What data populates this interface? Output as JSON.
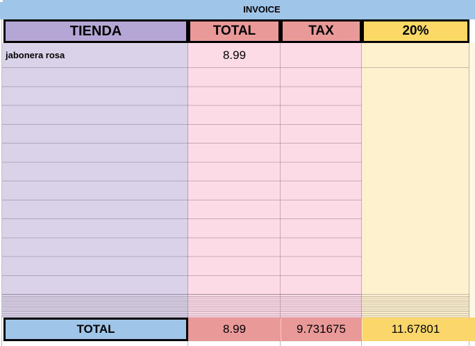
{
  "sheet": {
    "banner": {
      "title": "INVOICE",
      "bg_color": "#9fc5e8"
    },
    "header": {
      "tienda": "TIENDA",
      "total": "TOTAL",
      "tax": "TAX",
      "pct20": "20%"
    },
    "colors": {
      "header_purple": "#b4a7d6",
      "body_purple": "#d9d2e9",
      "header_salmon": "#ea9999",
      "body_pink": "#fcdbe6",
      "header_yellow": "#fcd966",
      "body_yellow": "#fdf2cd",
      "totals_salmon": "#ea9999",
      "totals_yellow": "#fbd76b",
      "totals_blue": "#9fc5e8"
    },
    "rows": [
      {
        "tienda": "jabonera rosa",
        "total": "8.99",
        "tax": "",
        "pct20": ""
      }
    ],
    "totals": {
      "label": "TOTAL",
      "total": "8.99",
      "tax": "9.731675",
      "pct20": "11.67801"
    }
  }
}
